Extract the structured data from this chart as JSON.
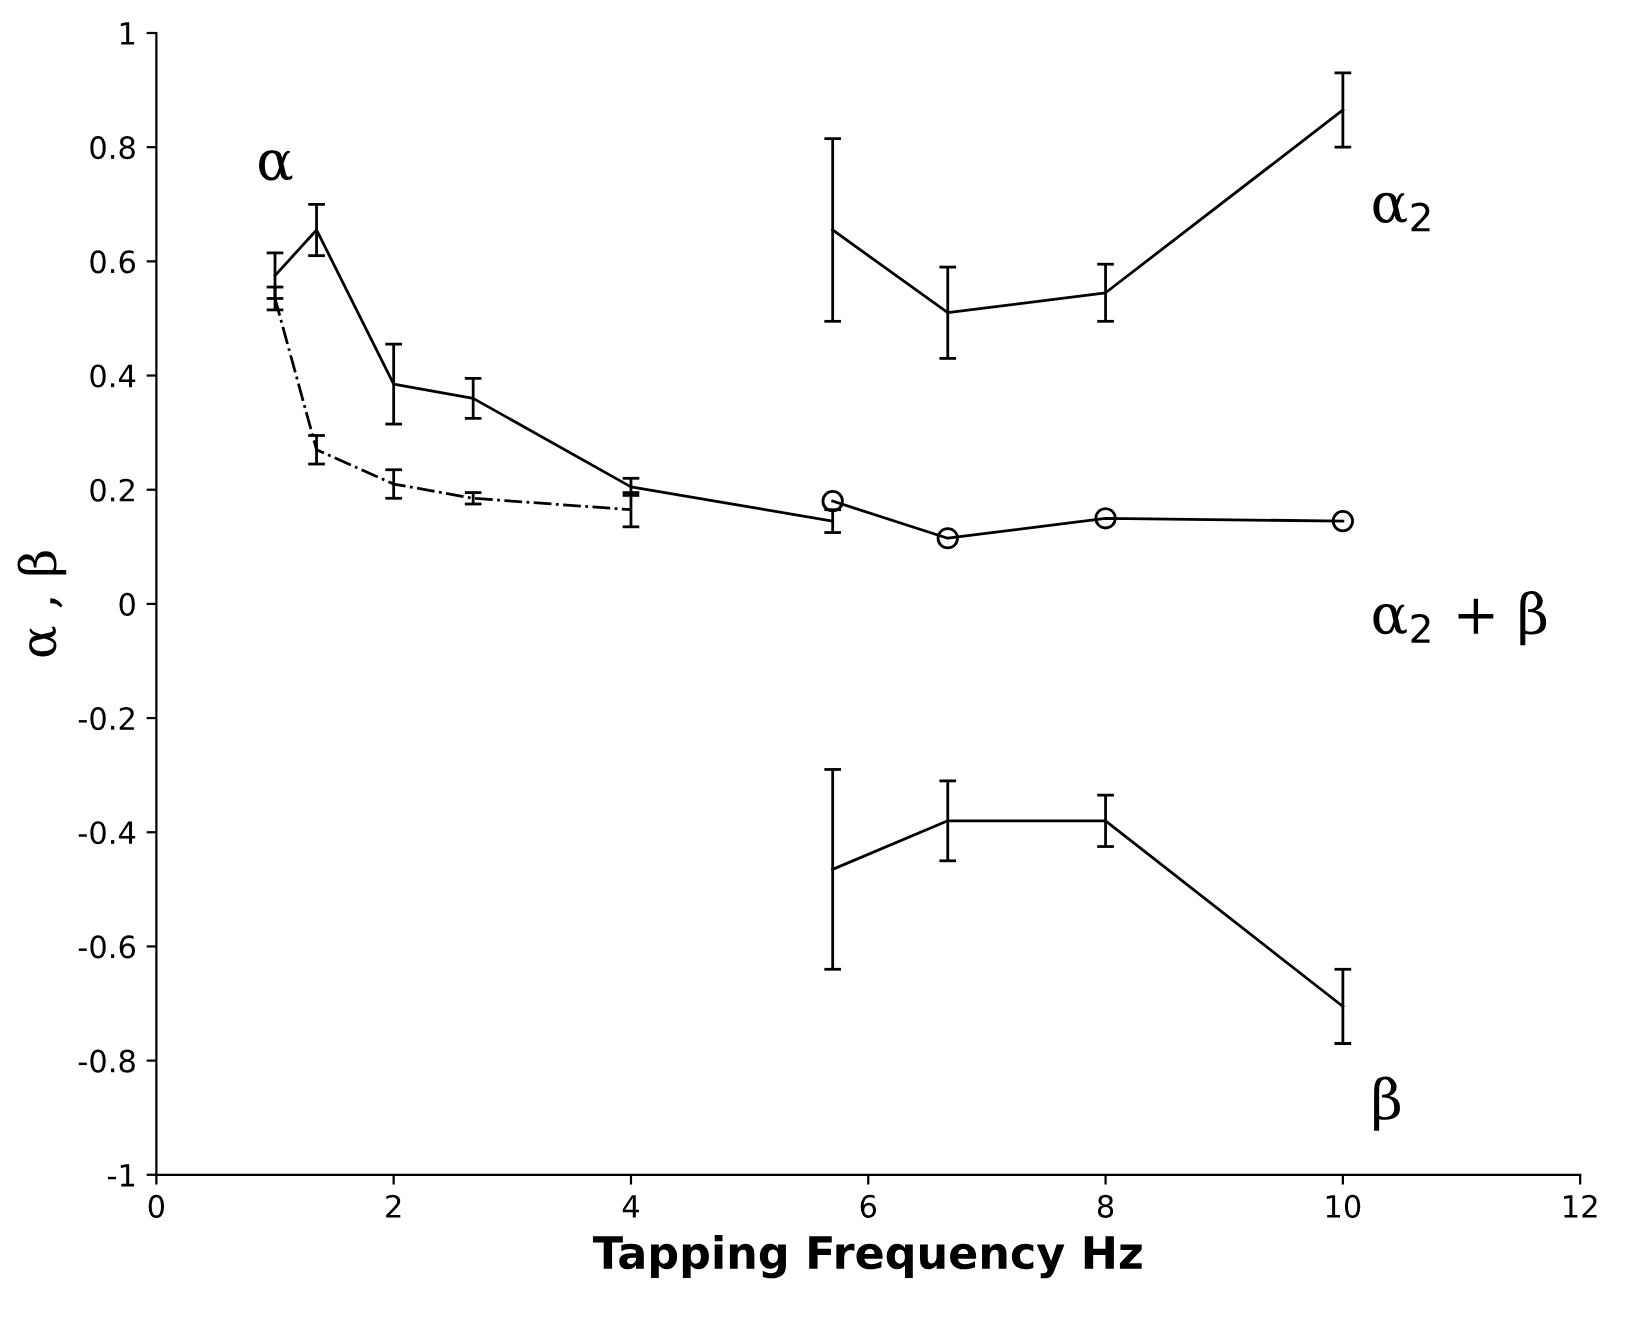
{
  "chart_data": {
    "type": "line",
    "xlabel": "Tapping Frequency Hz",
    "ylabel": "α , β",
    "xlim": [
      0,
      12
    ],
    "xticks": [
      0,
      2,
      4,
      6,
      8,
      10,
      12
    ],
    "ylim": [
      -1,
      1
    ],
    "yticks": [
      -1,
      -0.8,
      -0.6,
      -0.4,
      -0.2,
      0,
      0.2,
      0.4,
      0.6,
      0.8,
      1
    ],
    "grid": false,
    "legend": false,
    "series": [
      {
        "name": "α",
        "color": "#000000",
        "marker": "none",
        "line_style": "solid",
        "x": [
          1.0,
          1.35,
          2.0,
          2.67,
          4.0,
          5.7
        ],
        "values": [
          0.575,
          0.655,
          0.385,
          0.36,
          0.205,
          0.145
        ],
        "errors": [
          0.04,
          0.045,
          0.07,
          0.035,
          0.015,
          0.02
        ]
      },
      {
        "color": "#000000",
        "marker": "none",
        "line_style": "dashdot",
        "x": [
          1.0,
          1.35,
          2.0,
          2.67,
          4.0
        ],
        "values": [
          0.535,
          0.27,
          0.21,
          0.185,
          0.165
        ],
        "errors": [
          0.02,
          0.025,
          0.025,
          0.01,
          0.03
        ]
      },
      {
        "name": "α$_{2}$",
        "color": "#000000",
        "marker": "none",
        "line_style": "solid",
        "x": [
          5.7,
          6.67,
          8.0,
          10.0
        ],
        "values": [
          0.655,
          0.51,
          0.545,
          0.865
        ],
        "errors": [
          0.16,
          0.08,
          0.05,
          0.065
        ]
      },
      {
        "name": "α$_{2}$ + β",
        "color": "#000000",
        "marker": "circle",
        "line_style": "solid",
        "x": [
          5.7,
          6.67,
          8.0,
          10.0
        ],
        "values": [
          0.18,
          0.115,
          0.15,
          0.145
        ]
      },
      {
        "name": "β",
        "color": "#000000",
        "marker": "none",
        "line_style": "solid",
        "x": [
          5.7,
          6.67,
          8.0,
          10.0
        ],
        "values": [
          -0.465,
          -0.38,
          -0.38,
          -0.705
        ],
        "errors": [
          0.175,
          0.07,
          0.045,
          0.065
        ]
      }
    ]
  }
}
